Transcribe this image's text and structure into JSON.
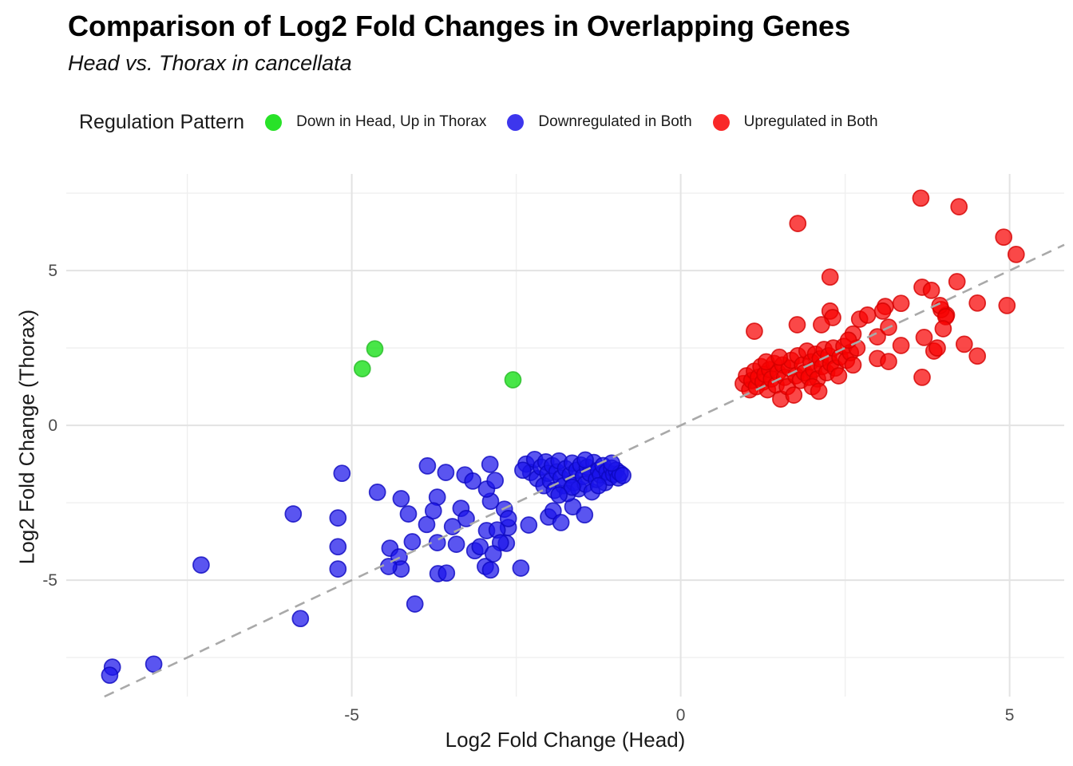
{
  "header": {
    "title": "Comparison of Log2 Fold Changes in Overlapping Genes",
    "subtitle": "Head vs. Thorax in cancellata"
  },
  "legend": {
    "title": "Regulation Pattern",
    "items": [
      {
        "label": "Down in Head, Up in Thorax",
        "color": "#02dd02",
        "stroke": "#25bb25"
      },
      {
        "label": "Downregulated in Both",
        "color": "#1b13ea",
        "stroke": "#0d08c0"
      },
      {
        "label": "Upregulated in Both",
        "color": "#f80202",
        "stroke": "#d40000"
      }
    ]
  },
  "chart_data": {
    "type": "scatter",
    "title": "Comparison of Log2 Fold Changes in Overlapping Genes",
    "subtitle": "Head vs. Thorax in cancellata",
    "xlabel": "Log2 Fold Change (Head)",
    "ylabel": "Log2 Fold Change (Thorax)",
    "xlim": [
      -9.34,
      5.83
    ],
    "ylim": [
      -8.76,
      8.12
    ],
    "x_major_ticks": [
      -5,
      0,
      5
    ],
    "y_major_ticks": [
      -5,
      0,
      5
    ],
    "x_minor_ticks": [
      -7.5,
      -2.5,
      2.5
    ],
    "y_minor_ticks": [
      -7.5,
      -2.5,
      2.5,
      7.5
    ],
    "grid": true,
    "legend_position": "top",
    "reference_line": {
      "type": "identity",
      "slope": 1,
      "intercept": 0,
      "style": "dashed",
      "color": "#a9a9a9"
    },
    "point_alpha": 0.72,
    "series": [
      {
        "name": "Down in Head, Up in Thorax",
        "color": "#02dd02",
        "stroke": "#25bb25",
        "points": [
          [
            -4.65,
            2.47
          ],
          [
            -4.84,
            1.83
          ],
          [
            -2.55,
            1.47
          ]
        ]
      },
      {
        "name": "Downregulated in Both",
        "color": "#1b13ea",
        "stroke": "#0d08c0",
        "points": [
          [
            -8.64,
            -7.81
          ],
          [
            -8.68,
            -8.07
          ],
          [
            -8.01,
            -7.71
          ],
          [
            -7.29,
            -4.51
          ],
          [
            -5.89,
            -2.86
          ],
          [
            -5.78,
            -6.24
          ],
          [
            -5.15,
            -1.55
          ],
          [
            -5.21,
            -2.99
          ],
          [
            -5.21,
            -3.92
          ],
          [
            -5.21,
            -4.64
          ],
          [
            -4.61,
            -2.16
          ],
          [
            -4.04,
            -5.77
          ],
          [
            -4.25,
            -2.37
          ],
          [
            -4.14,
            -2.86
          ],
          [
            -3.86,
            -3.2
          ],
          [
            -4.08,
            -3.76
          ],
          [
            -4.42,
            -3.97
          ],
          [
            -4.28,
            -4.25
          ],
          [
            -4.25,
            -4.64
          ],
          [
            -4.44,
            -4.56
          ],
          [
            -3.85,
            -1.31
          ],
          [
            -3.57,
            -1.52
          ],
          [
            -3.7,
            -2.32
          ],
          [
            -3.76,
            -2.76
          ],
          [
            -3.7,
            -3.79
          ],
          [
            -3.69,
            -4.79
          ],
          [
            -3.56,
            -4.77
          ],
          [
            -3.28,
            -1.6
          ],
          [
            -3.16,
            -1.8
          ],
          [
            -3.34,
            -2.68
          ],
          [
            -3.26,
            -3.01
          ],
          [
            -3.47,
            -3.27
          ],
          [
            -3.41,
            -3.84
          ],
          [
            -3.13,
            -4.05
          ],
          [
            -2.97,
            -4.56
          ],
          [
            -2.89,
            -4.67
          ],
          [
            -2.43,
            -4.61
          ],
          [
            -3.05,
            -3.92
          ],
          [
            -2.65,
            -3.81
          ],
          [
            -2.62,
            -3.3
          ],
          [
            -2.31,
            -3.22
          ],
          [
            -2.95,
            -3.4
          ],
          [
            -2.79,
            -3.38
          ],
          [
            -2.74,
            -3.79
          ],
          [
            -2.85,
            -4.15
          ],
          [
            -2.68,
            -2.71
          ],
          [
            -2.62,
            -3.01
          ],
          [
            -2.89,
            -2.45
          ],
          [
            -2.95,
            -2.06
          ],
          [
            -2.82,
            -1.78
          ],
          [
            -2.9,
            -1.26
          ],
          [
            -2.01,
            -2.96
          ],
          [
            -1.94,
            -2.76
          ],
          [
            -1.64,
            -2.63
          ],
          [
            -1.46,
            -2.89
          ],
          [
            -1.82,
            -3.14
          ],
          [
            -2.35,
            -1.25
          ],
          [
            -2.28,
            -1.52
          ],
          [
            -2.22,
            -1.1
          ],
          [
            -2.18,
            -1.72
          ],
          [
            -2.12,
            -1.35
          ],
          [
            -2.08,
            -1.95
          ],
          [
            -2.05,
            -1.18
          ],
          [
            -2.02,
            -1.55
          ],
          [
            -1.98,
            -1.8
          ],
          [
            -1.95,
            -1.3
          ],
          [
            -1.92,
            -2.1
          ],
          [
            -1.88,
            -1.5
          ],
          [
            -1.85,
            -1.15
          ],
          [
            -1.82,
            -1.7
          ],
          [
            -1.78,
            -1.95
          ],
          [
            -1.75,
            -1.4
          ],
          [
            -1.72,
            -2.2
          ],
          [
            -1.68,
            -1.6
          ],
          [
            -1.65,
            -1.22
          ],
          [
            -1.62,
            -1.85
          ],
          [
            -1.58,
            -1.45
          ],
          [
            -1.55,
            -2.05
          ],
          [
            -1.52,
            -1.28
          ],
          [
            -1.48,
            -1.65
          ],
          [
            -1.45,
            -1.9
          ],
          [
            -1.42,
            -1.35
          ],
          [
            -1.38,
            -1.55
          ],
          [
            -1.35,
            -2.15
          ],
          [
            -1.32,
            -1.2
          ],
          [
            -1.28,
            -1.75
          ],
          [
            -1.25,
            -1.45
          ],
          [
            -1.22,
            -1.6
          ],
          [
            -1.18,
            -1.3
          ],
          [
            -1.15,
            -1.85
          ],
          [
            -1.12,
            -1.5
          ],
          [
            -1.08,
            -1.68
          ],
          [
            -1.05,
            -1.38
          ],
          [
            -1.02,
            -1.58
          ],
          [
            -0.98,
            -1.45
          ],
          [
            -0.95,
            -1.7
          ],
          [
            -0.92,
            -1.55
          ],
          [
            -0.88,
            -1.62
          ],
          [
            -1.45,
            -1.12
          ],
          [
            -1.25,
            -1.95
          ],
          [
            -1.65,
            -2.0
          ],
          [
            -1.05,
            -1.22
          ],
          [
            -2.4,
            -1.45
          ],
          [
            -1.85,
            -2.25
          ]
        ]
      },
      {
        "name": "Upregulated in Both",
        "color": "#f80202",
        "stroke": "#d40000",
        "points": [
          [
            3.65,
            7.34
          ],
          [
            4.23,
            7.06
          ],
          [
            1.78,
            6.52
          ],
          [
            4.91,
            6.08
          ],
          [
            5.1,
            5.52
          ],
          [
            2.27,
            4.79
          ],
          [
            4.2,
            4.64
          ],
          [
            3.67,
            4.46
          ],
          [
            3.81,
            4.36
          ],
          [
            1.12,
            3.04
          ],
          [
            4.51,
            3.95
          ],
          [
            4.96,
            3.87
          ],
          [
            4.31,
            2.62
          ],
          [
            4.51,
            2.24
          ],
          [
            3.85,
            2.4
          ],
          [
            3.7,
            2.84
          ],
          [
            3.67,
            1.55
          ],
          [
            4.04,
            3.56
          ],
          [
            3.96,
            3.74
          ],
          [
            3.35,
            3.94
          ],
          [
            3.94,
            3.87
          ],
          [
            3.11,
            3.84
          ],
          [
            3.07,
            3.69
          ],
          [
            4.03,
            3.51
          ],
          [
            3.99,
            3.12
          ],
          [
            2.99,
            2.86
          ],
          [
            3.16,
            3.17
          ],
          [
            2.72,
            3.43
          ],
          [
            2.84,
            3.56
          ],
          [
            2.27,
            3.69
          ],
          [
            2.31,
            3.48
          ],
          [
            2.14,
            3.25
          ],
          [
            1.77,
            3.25
          ],
          [
            3.35,
            2.58
          ],
          [
            2.99,
            2.16
          ],
          [
            3.16,
            2.06
          ],
          [
            3.9,
            2.5
          ],
          [
            2.62,
            2.95
          ],
          [
            0.95,
            1.35
          ],
          [
            1.0,
            1.6
          ],
          [
            1.05,
            1.15
          ],
          [
            1.08,
            1.45
          ],
          [
            1.12,
            1.75
          ],
          [
            1.15,
            1.25
          ],
          [
            1.18,
            1.55
          ],
          [
            1.22,
            1.9
          ],
          [
            1.25,
            1.4
          ],
          [
            1.28,
            1.65
          ],
          [
            1.32,
            1.15
          ],
          [
            1.35,
            1.8
          ],
          [
            1.38,
            1.5
          ],
          [
            1.42,
            2.0
          ],
          [
            1.45,
            1.3
          ],
          [
            1.48,
            1.7
          ],
          [
            1.52,
            0.85
          ],
          [
            1.55,
            1.95
          ],
          [
            1.58,
            1.55
          ],
          [
            1.62,
            1.25
          ],
          [
            1.65,
            1.85
          ],
          [
            1.68,
            2.1
          ],
          [
            1.72,
            0.98
          ],
          [
            1.75,
            1.6
          ],
          [
            1.78,
            2.25
          ],
          [
            1.82,
            1.45
          ],
          [
            1.85,
            1.95
          ],
          [
            1.88,
            1.7
          ],
          [
            1.92,
            2.4
          ],
          [
            1.95,
            1.55
          ],
          [
            1.98,
            2.05
          ],
          [
            2.02,
            1.8
          ],
          [
            2.05,
            2.3
          ],
          [
            2.08,
            1.5
          ],
          [
            2.12,
            2.15
          ],
          [
            2.15,
            1.9
          ],
          [
            2.18,
            2.45
          ],
          [
            2.22,
            1.7
          ],
          [
            2.25,
            2.25
          ],
          [
            2.28,
            2.0
          ],
          [
            2.32,
            2.5
          ],
          [
            2.35,
            1.85
          ],
          [
            2.42,
            2.2
          ],
          [
            2.48,
            2.55
          ],
          [
            2.52,
            2.1
          ],
          [
            2.58,
            2.35
          ],
          [
            2.62,
            1.95
          ],
          [
            2.68,
            2.5
          ],
          [
            1.3,
            2.05
          ],
          [
            1.5,
            2.2
          ],
          [
            2.0,
            1.25
          ],
          [
            2.4,
            1.6
          ],
          [
            2.55,
            2.75
          ],
          [
            2.1,
            1.1
          ]
        ]
      }
    ]
  },
  "style": {
    "grid_major_color": "#e3e3e3",
    "grid_minor_color": "#efefef",
    "tick_label_color": "#4d4d4d",
    "axis_title_color": "#1a1a1a",
    "background": "#ffffff"
  }
}
